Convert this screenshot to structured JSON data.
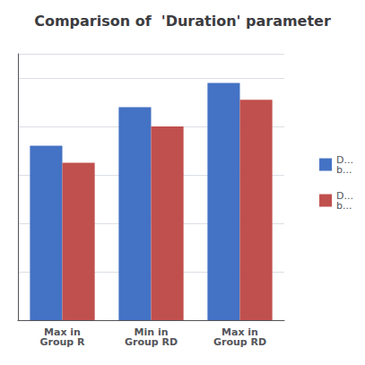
{
  "chart_data": {
    "type": "bar",
    "title": "Comparison of  'Duration' parameter",
    "categories": [
      "Max in\nGroup R",
      "Min in\nGroup RD",
      "Max in\nGroup RD"
    ],
    "series": [
      {
        "name": "D...\nb...",
        "color": "#4472C4",
        "values": [
          72,
          88,
          98
        ]
      },
      {
        "name": "D...\nb...",
        "color": "#C0504D",
        "values": [
          65,
          80,
          91
        ]
      }
    ],
    "ylim": [
      0,
      110
    ],
    "yticks": [
      0,
      20,
      40,
      60,
      80,
      100
    ],
    "grid": true,
    "legend": "right",
    "tick_labels": "x"
  }
}
